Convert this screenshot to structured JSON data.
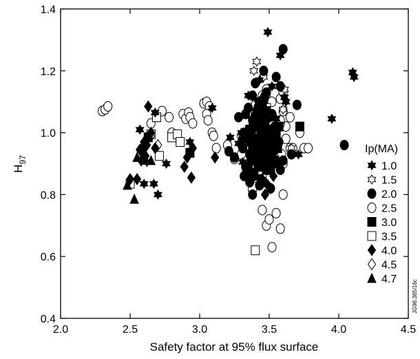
{
  "chart_data": {
    "type": "scatter",
    "title": "",
    "xlabel": "Safety factor at 95% flux surface",
    "ylabel_main": "H",
    "ylabel_sub": "97",
    "xlim": [
      2.0,
      4.5
    ],
    "ylim": [
      0.4,
      1.4
    ],
    "x_ticks": [
      "2.0",
      "2.5",
      "3.0",
      "3.5",
      "4.0",
      "4.5"
    ],
    "y_ticks": [
      "0.4",
      "0.6",
      "0.8",
      "1.0",
      "1.2",
      "1.4"
    ],
    "grid": false,
    "legend_title": "Ip(MA)",
    "legend_position": "right",
    "side_note": "JG98.385/16c",
    "marker_color": "#000000",
    "series": [
      {
        "name": "1.0",
        "marker": "star6-filled",
        "x": [
          3.49,
          3.58,
          3.61,
          3.43,
          4.1,
          4.11,
          2.68,
          2.57,
          2.67,
          2.7,
          2.93,
          2.6,
          2.62,
          2.76,
          3.71,
          3.95,
          3.48,
          3.46,
          3.42,
          3.52,
          3.31,
          3.28,
          3.39,
          3.22,
          3.09,
          3.35,
          3.55,
          3.62,
          3.38,
          3.4,
          3.44,
          3.3
        ],
        "y": [
          1.325,
          1.25,
          1.115,
          1.17,
          1.195,
          1.18,
          1.065,
          1.01,
          0.835,
          0.8,
          0.97,
          0.835,
          0.905,
          0.9,
          0.93,
          1.045,
          1.125,
          1.09,
          1.095,
          1.15,
          0.905,
          0.965,
          0.97,
          0.985,
          1.08,
          1.12,
          1.045,
          1.1,
          1.0,
          1.02,
          0.95,
          1.0
        ]
      },
      {
        "name": "1.5",
        "marker": "star6-open",
        "x": [
          3.41,
          3.46,
          3.61,
          3.66,
          3.6,
          3.39,
          3.48
        ],
        "y": [
          1.23,
          1.18,
          1.14,
          0.95,
          1.075,
          1.2,
          1.13
        ]
      },
      {
        "name": "2.0",
        "marker": "circle-filled",
        "x": [
          3.6,
          3.46,
          3.55,
          3.7,
          3.58,
          3.4,
          3.38,
          3.33,
          3.35,
          3.43,
          3.47,
          3.5,
          3.52,
          3.54,
          3.45,
          3.4,
          3.36,
          3.32,
          3.31,
          3.31,
          3.36,
          3.42,
          3.47,
          3.49,
          3.56,
          3.58,
          3.37,
          3.39,
          3.44,
          3.46,
          3.51,
          3.43,
          3.44,
          3.36,
          3.5,
          3.55,
          3.4,
          3.33,
          3.38,
          3.53,
          3.6,
          3.66,
          3.41,
          3.48,
          3.34,
          3.45,
          3.52,
          3.57,
          3.38,
          3.42,
          3.46,
          4.04,
          3.21,
          3.37,
          3.32,
          3.36,
          3.28,
          3.25
        ],
        "y": [
          1.27,
          1.2,
          1.18,
          1.09,
          1.15,
          1.16,
          1.12,
          1.06,
          1.08,
          1.1,
          1.12,
          1.05,
          1.06,
          1.02,
          1.03,
          1.04,
          1.01,
          1.0,
          0.98,
          0.95,
          0.93,
          0.94,
          0.91,
          0.92,
          0.9,
          0.88,
          0.87,
          0.86,
          0.85,
          0.84,
          0.82,
          0.83,
          0.99,
          0.97,
          0.99,
          1.0,
          0.96,
          0.89,
          0.8,
          0.94,
          0.91,
          0.93,
          1.07,
          1.13,
          1.0,
          0.96,
          0.98,
          0.97,
          1.04,
          1.08,
          1.11,
          0.96,
          0.94,
          0.99,
          0.86,
          0.84,
          1.05,
          0.92
        ]
      },
      {
        "name": "2.5",
        "marker": "circle-open",
        "x": [
          2.3,
          2.32,
          2.34,
          2.65,
          2.73,
          2.78,
          2.8,
          2.83,
          2.88,
          2.9,
          2.92,
          2.93,
          2.95,
          3.03,
          3.05,
          3.07,
          3.05,
          3.06,
          3.09,
          3.1,
          3.12,
          3.2,
          3.3,
          3.25,
          3.45,
          3.48,
          3.5,
          3.52,
          3.55,
          3.58,
          3.6,
          3.62,
          3.65,
          3.67,
          3.72,
          3.75,
          3.78,
          3.6,
          3.55,
          3.5,
          3.48,
          3.52,
          3.45,
          3.38,
          3.43,
          3.48,
          3.52,
          3.58,
          3.62,
          3.3,
          3.35,
          3.4,
          3.45,
          3.48,
          3.52,
          3.55,
          3.58,
          3.6,
          3.35,
          3.4,
          3.45,
          3.48,
          3.52,
          3.58,
          3.6,
          3.65,
          3.32,
          3.38,
          3.44,
          3.47,
          3.55,
          3.5,
          3.59,
          3.4,
          3.49
        ],
        "y": [
          1.07,
          1.075,
          1.085,
          1.03,
          1.07,
          1.05,
          1.0,
          0.99,
          1.06,
          1.045,
          1.065,
          1.05,
          1.03,
          1.095,
          1.1,
          1.085,
          1.06,
          1.04,
          1.0,
          0.99,
          0.95,
          0.96,
          0.93,
          0.915,
          0.75,
          0.7,
          0.72,
          0.63,
          0.74,
          0.69,
          0.8,
          1.02,
          0.95,
          0.95,
          1.0,
          0.95,
          0.95,
          0.9,
          0.92,
          0.95,
          0.97,
          0.98,
          1.03,
          1.02,
          1.0,
          0.99,
          1.01,
          1.03,
          0.98,
          0.99,
          1.0,
          1.02,
          0.98,
          0.96,
          0.99,
          1.01,
          1.04,
          1.07,
          1.08,
          1.09,
          1.12,
          1.14,
          1.1,
          1.11,
          1.13,
          1.05,
          0.97,
          0.92,
          0.95,
          0.9,
          0.94,
          0.96,
          0.93,
          0.91,
          0.88
        ]
      },
      {
        "name": "3.0",
        "marker": "square-filled",
        "x": [
          2.63,
          2.93,
          3.34,
          3.37,
          3.4,
          3.42,
          3.44,
          3.46,
          3.48,
          3.5,
          3.52,
          3.54,
          3.56,
          3.38,
          3.4,
          3.42,
          3.44,
          3.46,
          3.48,
          3.5,
          3.52,
          3.36,
          3.39,
          3.41,
          3.43,
          3.45,
          3.47,
          3.49,
          3.51,
          3.53,
          3.55,
          3.57,
          3.72,
          3.37,
          3.41,
          3.45,
          3.49,
          3.53,
          3.4,
          3.44,
          3.48,
          3.35,
          3.39,
          3.43,
          3.47,
          3.51
        ],
        "y": [
          0.985,
          0.935,
          0.89,
          0.91,
          0.92,
          0.89,
          0.9,
          0.93,
          0.88,
          0.9,
          0.92,
          0.91,
          0.95,
          0.96,
          0.98,
          0.97,
          0.99,
          1.0,
          0.98,
          0.97,
          1.0,
          1.01,
          1.02,
          1.03,
          1.04,
          1.0,
          1.02,
          1.01,
          0.99,
          0.98,
          1.0,
          1.02,
          1.02,
          0.93,
          0.95,
          0.95,
          0.94,
          0.96,
          1.05,
          1.06,
          1.07,
          0.88,
          0.87,
          0.89,
          0.9,
          0.88
        ]
      },
      {
        "name": "3.5",
        "marker": "square-open",
        "x": [
          2.5,
          2.65,
          2.69,
          2.71,
          2.8,
          2.84,
          2.86,
          3.38,
          3.4,
          3.45,
          3.55,
          3.38,
          3.42,
          3.48,
          3.5
        ],
        "y": [
          0.835,
          0.995,
          1.05,
          0.925,
          0.985,
          0.995,
          0.97,
          0.825,
          0.62,
          0.87,
          0.95,
          1.06,
          1.04,
          1.08,
          0.96
        ]
      },
      {
        "name": "4.0",
        "marker": "diamond-filled",
        "x": [
          2.5,
          2.55,
          2.6,
          2.62,
          2.63,
          2.65,
          2.68,
          2.57,
          2.58,
          2.61,
          2.89,
          2.94,
          2.91,
          2.95,
          3.11,
          3.47,
          3.51,
          3.53,
          3.49
        ],
        "y": [
          0.85,
          0.85,
          0.97,
          0.96,
          1.085,
          1.0,
          0.95,
          0.945,
          0.91,
          0.925,
          0.89,
          0.855,
          0.92,
          0.95,
          0.92,
          0.8,
          0.82,
          0.86,
          0.83
        ]
      },
      {
        "name": "4.5",
        "marker": "diamond-open",
        "x": [
          2.6,
          2.65,
          2.7
        ],
        "y": [
          0.93,
          0.99,
          0.96
        ]
      },
      {
        "name": "4.7",
        "marker": "triangle-filled",
        "x": [
          2.53,
          2.48,
          2.55,
          2.6,
          2.65,
          2.58
        ],
        "y": [
          0.785,
          0.83,
          0.92,
          0.94,
          0.91,
          0.95
        ]
      }
    ]
  }
}
